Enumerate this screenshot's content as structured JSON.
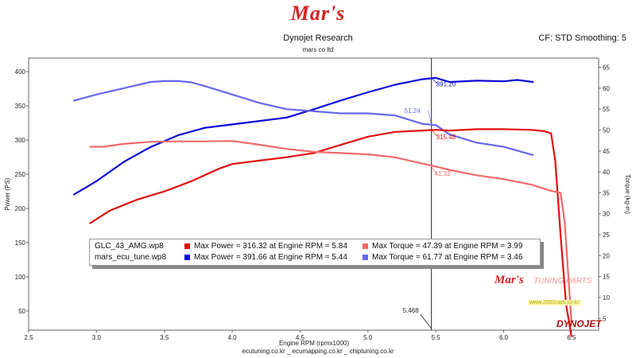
{
  "header": {
    "logo_text": "Mar's",
    "title": "Dynojet Research",
    "subtitle": "mars co ltd",
    "cf_info": "CF: STD Smoothing: 5"
  },
  "footer": {
    "text": "ecutuning.co.kr _ ecumapping.co.kr _ chiptuning.co.kr"
  },
  "watermarks": {
    "logo": "Mar's",
    "tuning_parts": "TUNING PARTS",
    "url": "www.2000cars.co.kr",
    "brand": "DYNOJET"
  },
  "legend": {
    "rows": [
      {
        "name": "GLC_43_AMG.wp8",
        "power_text": "Max Power = 316.32 at Engine RPM = 5.84",
        "torque_text": "Max Torque = 47.39 at Engine RPM = 3.99",
        "power_color": "#e01010",
        "torque_color": "#f06a6a"
      },
      {
        "name": "mars_ecu_tune.wp8",
        "power_text": "Max Power = 391.66 at Engine RPM = 5.44",
        "torque_text": "Max Torque = 61.77 at Engine RPM = 3.46",
        "power_color": "#0a0ad8",
        "torque_color": "#6868ec"
      }
    ]
  },
  "chart_data": {
    "type": "line",
    "xlabel": "Engine RPM (rpmx1000)",
    "ylabel": "Power (PS)",
    "y2label": "Torque (kg-m)",
    "xlim": [
      2.5,
      6.7
    ],
    "ylim": [
      22,
      420
    ],
    "y2lim": [
      2.2,
      67.2
    ],
    "xticks": [
      "2.5",
      "3.0",
      "3.5",
      "4.0",
      "4.5",
      "5.0",
      "5.5",
      "6.0",
      "6.5"
    ],
    "yticks": [
      "50",
      "100",
      "150",
      "200",
      "250",
      "300",
      "350",
      "400"
    ],
    "y2ticks": [
      "5",
      "10",
      "15",
      "20",
      "25",
      "30",
      "35",
      "40",
      "45",
      "50",
      "55",
      "60",
      "65"
    ],
    "grid": false,
    "cursor": {
      "x": 5.468,
      "label": "5.468"
    },
    "annotations": [
      {
        "text": "391.20",
        "x": 5.468,
        "y": 391.2,
        "axis": "left",
        "color": "#0a0ad8"
      },
      {
        "text": "315.48",
        "x": 5.468,
        "y": 315.5,
        "axis": "left",
        "color": "#e01010"
      },
      {
        "text": "51.24",
        "x": 5.468,
        "y": 51.24,
        "axis": "right",
        "color": "#6868ec"
      },
      {
        "text": "41.32",
        "x": 5.468,
        "y": 41.32,
        "axis": "right",
        "color": "#f06a6a"
      }
    ],
    "series": [
      {
        "name": "mars_ecu_tune.wp8",
        "kind": "power",
        "axis": "left",
        "color": "#0a0ad8",
        "x": [
          2.83,
          3.0,
          3.2,
          3.4,
          3.6,
          3.8,
          4.0,
          4.2,
          4.4,
          4.6,
          4.8,
          5.0,
          5.2,
          5.4,
          5.5,
          5.6,
          5.8,
          6.0,
          6.1,
          6.22
        ],
        "y": [
          220,
          240,
          268,
          290,
          307,
          318,
          323,
          328,
          333,
          345,
          358,
          370,
          381,
          389,
          391,
          385,
          387,
          386,
          388,
          385
        ]
      },
      {
        "name": "mars_ecu_tune.wp8",
        "kind": "torque",
        "axis": "right",
        "color": "#6868ec",
        "x": [
          2.83,
          3.0,
          3.2,
          3.4,
          3.5,
          3.6,
          3.7,
          3.8,
          4.0,
          4.2,
          4.4,
          4.6,
          4.8,
          5.0,
          5.2,
          5.4,
          5.5,
          5.6,
          5.8,
          6.0,
          6.22
        ],
        "y": [
          57,
          58.5,
          60,
          61.5,
          61.7,
          61.7,
          61.4,
          60.5,
          58.5,
          56.5,
          55,
          54.5,
          54,
          54,
          53.5,
          51.5,
          51.2,
          49,
          47,
          46,
          44
        ]
      },
      {
        "name": "GLC_43_AMG.wp8",
        "kind": "power",
        "axis": "left",
        "color": "#e01010",
        "x": [
          2.95,
          3.1,
          3.3,
          3.5,
          3.7,
          3.9,
          4.0,
          4.2,
          4.4,
          4.6,
          4.8,
          5.0,
          5.2,
          5.4,
          5.5,
          5.6,
          5.8,
          6.0,
          6.2,
          6.3,
          6.35,
          6.38,
          6.42,
          6.46,
          6.5
        ],
        "y": [
          178,
          197,
          213,
          225,
          240,
          258,
          265,
          270,
          275,
          281,
          293,
          305,
          312,
          314,
          315,
          314,
          316,
          316,
          315,
          313,
          310,
          270,
          160,
          60,
          12
        ]
      },
      {
        "name": "GLC_43_AMG.wp8",
        "kind": "torque",
        "axis": "right",
        "color": "#f06a6a",
        "x": [
          2.95,
          3.05,
          3.2,
          3.4,
          3.6,
          3.8,
          4.0,
          4.2,
          4.4,
          4.6,
          4.8,
          5.0,
          5.2,
          5.4,
          5.5,
          5.6,
          5.8,
          6.0,
          6.2,
          6.35,
          6.42,
          6.45,
          6.5
        ],
        "y": [
          46,
          46,
          46.7,
          47.2,
          47.3,
          47.3,
          47.4,
          46.5,
          45.5,
          44.8,
          44.5,
          44.2,
          43.5,
          42,
          41.3,
          40.5,
          39.2,
          38.3,
          37,
          35.5,
          35,
          28,
          4
        ]
      }
    ]
  }
}
